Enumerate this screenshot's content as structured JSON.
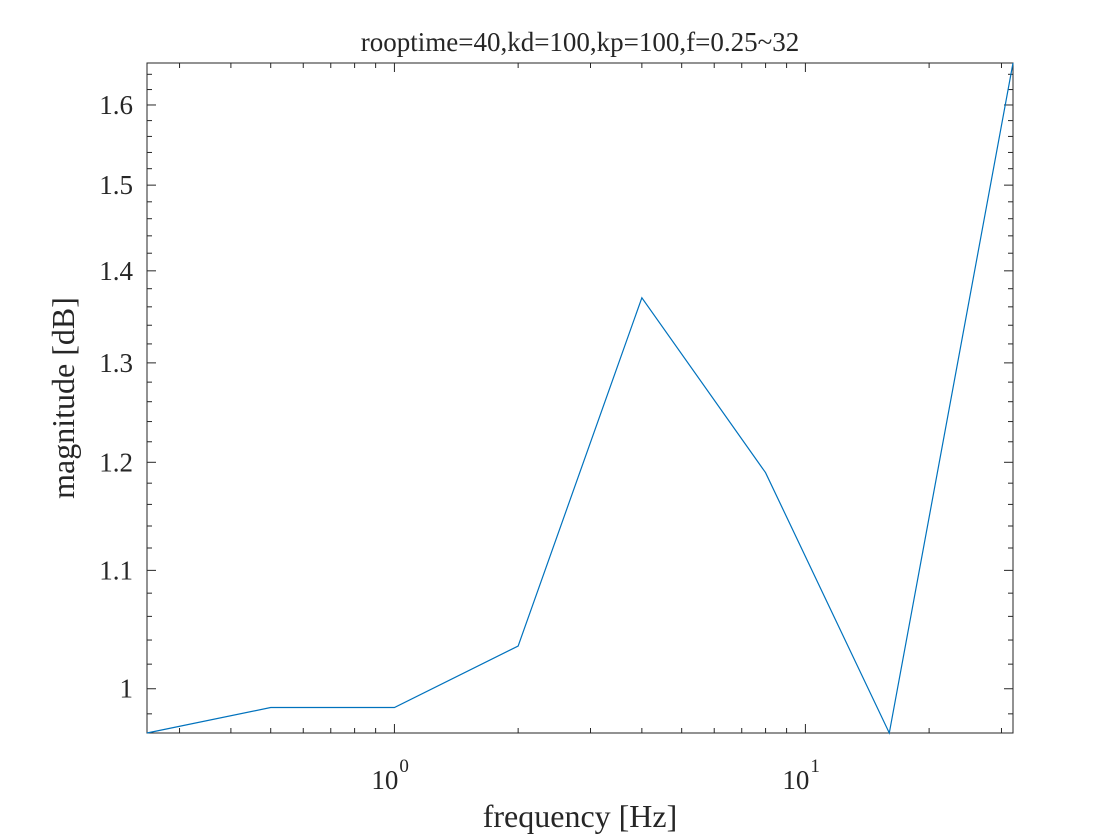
{
  "chart_data": {
    "type": "line",
    "title": "rooptime=40,kd=100,kp=100,f=0.25~32",
    "xlabel": "frequency [Hz]",
    "ylabel": "magnitude [dB]",
    "xscale": "log",
    "yscale": "log",
    "xlim": [
      0.25,
      32
    ],
    "ylim": [
      0.965,
      1.655
    ],
    "grid": false,
    "x_major_ticks": [
      {
        "value": 1,
        "base": "10",
        "exp": "0"
      },
      {
        "value": 10,
        "base": "10",
        "exp": "1"
      }
    ],
    "y_ticks": [
      {
        "value": 1.0,
        "label": "1"
      },
      {
        "value": 1.1,
        "label": "1.1"
      },
      {
        "value": 1.2,
        "label": "1.2"
      },
      {
        "value": 1.3,
        "label": "1.3"
      },
      {
        "value": 1.4,
        "label": "1.4"
      },
      {
        "value": 1.5,
        "label": "1.5"
      },
      {
        "value": 1.6,
        "label": "1.6"
      }
    ],
    "series": [
      {
        "color": "#0072bd",
        "x": [
          0.25,
          0.5,
          1,
          2,
          4,
          8,
          16,
          32
        ],
        "y": [
          0.965,
          0.985,
          0.985,
          1.035,
          1.37,
          1.19,
          0.965,
          1.655
        ]
      }
    ]
  }
}
